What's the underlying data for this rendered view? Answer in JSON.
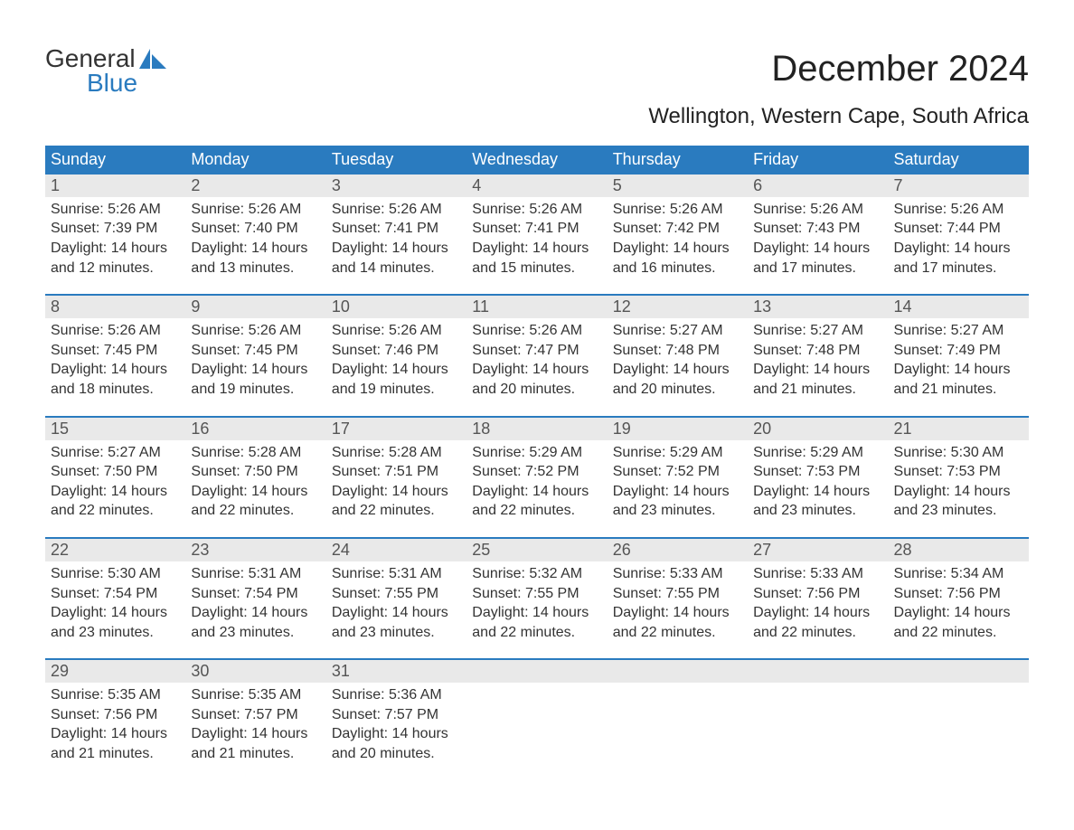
{
  "logo": {
    "text_top": "General",
    "text_bottom": "Blue",
    "accent_color": "#2a7bbf"
  },
  "title": "December 2024",
  "subtitle": "Wellington, Western Cape, South Africa",
  "colors": {
    "header_bg": "#2a7bbf",
    "header_text": "#ffffff",
    "daynum_bg": "#e9e9e9",
    "daynum_text": "#555555",
    "body_text": "#333333",
    "rule": "#2a7bbf",
    "page_bg": "#ffffff"
  },
  "day_headers": [
    "Sunday",
    "Monday",
    "Tuesday",
    "Wednesday",
    "Thursday",
    "Friday",
    "Saturday"
  ],
  "weeks": [
    [
      {
        "n": "1",
        "sunrise": "Sunrise: 5:26 AM",
        "sunset": "Sunset: 7:39 PM",
        "daylight": "Daylight: 14 hours and 12 minutes."
      },
      {
        "n": "2",
        "sunrise": "Sunrise: 5:26 AM",
        "sunset": "Sunset: 7:40 PM",
        "daylight": "Daylight: 14 hours and 13 minutes."
      },
      {
        "n": "3",
        "sunrise": "Sunrise: 5:26 AM",
        "sunset": "Sunset: 7:41 PM",
        "daylight": "Daylight: 14 hours and 14 minutes."
      },
      {
        "n": "4",
        "sunrise": "Sunrise: 5:26 AM",
        "sunset": "Sunset: 7:41 PM",
        "daylight": "Daylight: 14 hours and 15 minutes."
      },
      {
        "n": "5",
        "sunrise": "Sunrise: 5:26 AM",
        "sunset": "Sunset: 7:42 PM",
        "daylight": "Daylight: 14 hours and 16 minutes."
      },
      {
        "n": "6",
        "sunrise": "Sunrise: 5:26 AM",
        "sunset": "Sunset: 7:43 PM",
        "daylight": "Daylight: 14 hours and 17 minutes."
      },
      {
        "n": "7",
        "sunrise": "Sunrise: 5:26 AM",
        "sunset": "Sunset: 7:44 PM",
        "daylight": "Daylight: 14 hours and 17 minutes."
      }
    ],
    [
      {
        "n": "8",
        "sunrise": "Sunrise: 5:26 AM",
        "sunset": "Sunset: 7:45 PM",
        "daylight": "Daylight: 14 hours and 18 minutes."
      },
      {
        "n": "9",
        "sunrise": "Sunrise: 5:26 AM",
        "sunset": "Sunset: 7:45 PM",
        "daylight": "Daylight: 14 hours and 19 minutes."
      },
      {
        "n": "10",
        "sunrise": "Sunrise: 5:26 AM",
        "sunset": "Sunset: 7:46 PM",
        "daylight": "Daylight: 14 hours and 19 minutes."
      },
      {
        "n": "11",
        "sunrise": "Sunrise: 5:26 AM",
        "sunset": "Sunset: 7:47 PM",
        "daylight": "Daylight: 14 hours and 20 minutes."
      },
      {
        "n": "12",
        "sunrise": "Sunrise: 5:27 AM",
        "sunset": "Sunset: 7:48 PM",
        "daylight": "Daylight: 14 hours and 20 minutes."
      },
      {
        "n": "13",
        "sunrise": "Sunrise: 5:27 AM",
        "sunset": "Sunset: 7:48 PM",
        "daylight": "Daylight: 14 hours and 21 minutes."
      },
      {
        "n": "14",
        "sunrise": "Sunrise: 5:27 AM",
        "sunset": "Sunset: 7:49 PM",
        "daylight": "Daylight: 14 hours and 21 minutes."
      }
    ],
    [
      {
        "n": "15",
        "sunrise": "Sunrise: 5:27 AM",
        "sunset": "Sunset: 7:50 PM",
        "daylight": "Daylight: 14 hours and 22 minutes."
      },
      {
        "n": "16",
        "sunrise": "Sunrise: 5:28 AM",
        "sunset": "Sunset: 7:50 PM",
        "daylight": "Daylight: 14 hours and 22 minutes."
      },
      {
        "n": "17",
        "sunrise": "Sunrise: 5:28 AM",
        "sunset": "Sunset: 7:51 PM",
        "daylight": "Daylight: 14 hours and 22 minutes."
      },
      {
        "n": "18",
        "sunrise": "Sunrise: 5:29 AM",
        "sunset": "Sunset: 7:52 PM",
        "daylight": "Daylight: 14 hours and 22 minutes."
      },
      {
        "n": "19",
        "sunrise": "Sunrise: 5:29 AM",
        "sunset": "Sunset: 7:52 PM",
        "daylight": "Daylight: 14 hours and 23 minutes."
      },
      {
        "n": "20",
        "sunrise": "Sunrise: 5:29 AM",
        "sunset": "Sunset: 7:53 PM",
        "daylight": "Daylight: 14 hours and 23 minutes."
      },
      {
        "n": "21",
        "sunrise": "Sunrise: 5:30 AM",
        "sunset": "Sunset: 7:53 PM",
        "daylight": "Daylight: 14 hours and 23 minutes."
      }
    ],
    [
      {
        "n": "22",
        "sunrise": "Sunrise: 5:30 AM",
        "sunset": "Sunset: 7:54 PM",
        "daylight": "Daylight: 14 hours and 23 minutes."
      },
      {
        "n": "23",
        "sunrise": "Sunrise: 5:31 AM",
        "sunset": "Sunset: 7:54 PM",
        "daylight": "Daylight: 14 hours and 23 minutes."
      },
      {
        "n": "24",
        "sunrise": "Sunrise: 5:31 AM",
        "sunset": "Sunset: 7:55 PM",
        "daylight": "Daylight: 14 hours and 23 minutes."
      },
      {
        "n": "25",
        "sunrise": "Sunrise: 5:32 AM",
        "sunset": "Sunset: 7:55 PM",
        "daylight": "Daylight: 14 hours and 22 minutes."
      },
      {
        "n": "26",
        "sunrise": "Sunrise: 5:33 AM",
        "sunset": "Sunset: 7:55 PM",
        "daylight": "Daylight: 14 hours and 22 minutes."
      },
      {
        "n": "27",
        "sunrise": "Sunrise: 5:33 AM",
        "sunset": "Sunset: 7:56 PM",
        "daylight": "Daylight: 14 hours and 22 minutes."
      },
      {
        "n": "28",
        "sunrise": "Sunrise: 5:34 AM",
        "sunset": "Sunset: 7:56 PM",
        "daylight": "Daylight: 14 hours and 22 minutes."
      }
    ],
    [
      {
        "n": "29",
        "sunrise": "Sunrise: 5:35 AM",
        "sunset": "Sunset: 7:56 PM",
        "daylight": "Daylight: 14 hours and 21 minutes."
      },
      {
        "n": "30",
        "sunrise": "Sunrise: 5:35 AM",
        "sunset": "Sunset: 7:57 PM",
        "daylight": "Daylight: 14 hours and 21 minutes."
      },
      {
        "n": "31",
        "sunrise": "Sunrise: 5:36 AM",
        "sunset": "Sunset: 7:57 PM",
        "daylight": "Daylight: 14 hours and 20 minutes."
      },
      null,
      null,
      null,
      null
    ]
  ]
}
